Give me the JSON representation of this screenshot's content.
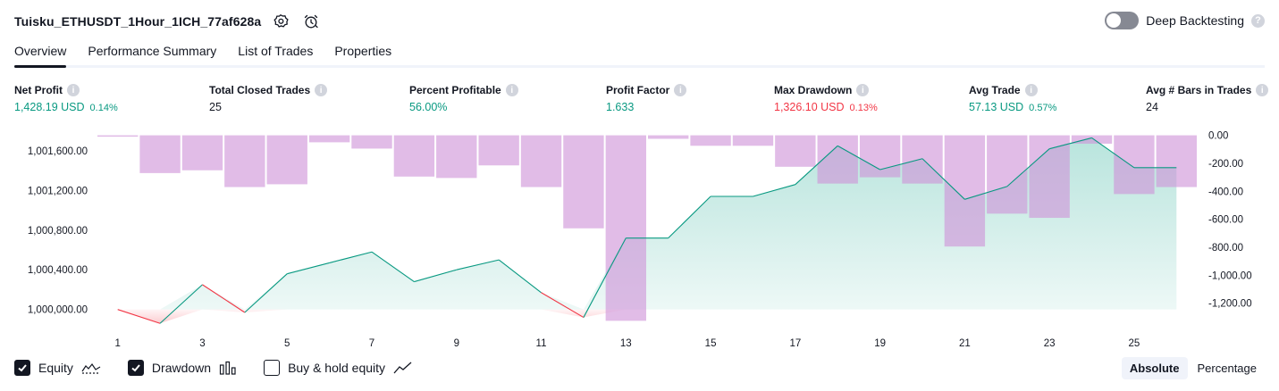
{
  "header": {
    "title": "Tuisku_ETHUSDT_1Hour_1ICH_77af628a",
    "settings_icon": "gear-icon",
    "alert_icon": "alarm-clock-icon",
    "deep_backtesting_label": "Deep Backtesting",
    "deep_backtesting_on": false
  },
  "tabs": [
    "Overview",
    "Performance Summary",
    "List of Trades",
    "Properties"
  ],
  "active_tab": "Overview",
  "stats": [
    {
      "label": "Net Profit",
      "value": "1,428.19 USD",
      "sub": "0.14%",
      "tone": "pos"
    },
    {
      "label": "Total Closed Trades",
      "value": "25",
      "sub": "",
      "tone": "plain"
    },
    {
      "label": "Percent Profitable",
      "value": "56.00%",
      "sub": "",
      "tone": "pos"
    },
    {
      "label": "Profit Factor",
      "value": "1.633",
      "sub": "",
      "tone": "pos"
    },
    {
      "label": "Max Drawdown",
      "value": "1,326.10 USD",
      "sub": "0.13%",
      "tone": "neg"
    },
    {
      "label": "Avg Trade",
      "value": "57.13 USD",
      "sub": "0.57%",
      "tone": "pos"
    },
    {
      "label": "Avg # Bars in Trades",
      "value": "24",
      "sub": "",
      "tone": "plain"
    }
  ],
  "chart_data": {
    "type": "area",
    "x": [
      1,
      2,
      3,
      4,
      5,
      6,
      7,
      8,
      9,
      10,
      11,
      12,
      13,
      14,
      15,
      16,
      17,
      18,
      19,
      20,
      21,
      22,
      23,
      24,
      25,
      26
    ],
    "x_tick_labels": [
      "1",
      "3",
      "5",
      "7",
      "9",
      "11",
      "13",
      "15",
      "17",
      "19",
      "21",
      "23",
      "25"
    ],
    "left_axis_ticks": [
      "1,001,600.00",
      "1,001,200.00",
      "1,000,800.00",
      "1,000,400.00",
      "1,000,000.00"
    ],
    "right_axis_ticks": [
      "0.00",
      "-200.00",
      "-400.00",
      "-600.00",
      "-800.00",
      "-1,000.00",
      "-1,200.00"
    ],
    "left_ylim": [
      999880,
      1001770
    ],
    "right_ylim": [
      -1330,
      10
    ],
    "series": [
      {
        "name": "Equity",
        "color": "#089981",
        "values": [
          1000000,
          999860,
          1000250,
          999970,
          1000360,
          1000470,
          1000580,
          1000280,
          1000400,
          1000500,
          1000170,
          999920,
          1000720,
          1000720,
          1001140,
          1001140,
          1001260,
          1001650,
          1001410,
          1001520,
          1001110,
          1001240,
          1001620,
          1001730,
          1001430,
          1001430
        ]
      },
      {
        "name": "Drawdown",
        "color": "#ce93d8",
        "values": [
          -10,
          -270,
          -250,
          -370,
          -350,
          -50,
          -95,
          -295,
          -305,
          -215,
          -370,
          -665,
          -1326,
          -25,
          -75,
          -75,
          -225,
          -345,
          -300,
          -345,
          -795,
          -560,
          -590,
          -60,
          -420,
          -370
        ]
      }
    ]
  },
  "legend": {
    "equity": {
      "label": "Equity",
      "checked": true,
      "icon": "equity-line-icon"
    },
    "drawdown": {
      "label": "Drawdown",
      "checked": true,
      "icon": "drawdown-bars-icon"
    },
    "buyhold": {
      "label": "Buy & hold equity",
      "checked": false,
      "icon": "buy-hold-line-icon"
    }
  },
  "mode": {
    "options": [
      "Absolute",
      "Percentage"
    ],
    "selected": "Absolute"
  }
}
